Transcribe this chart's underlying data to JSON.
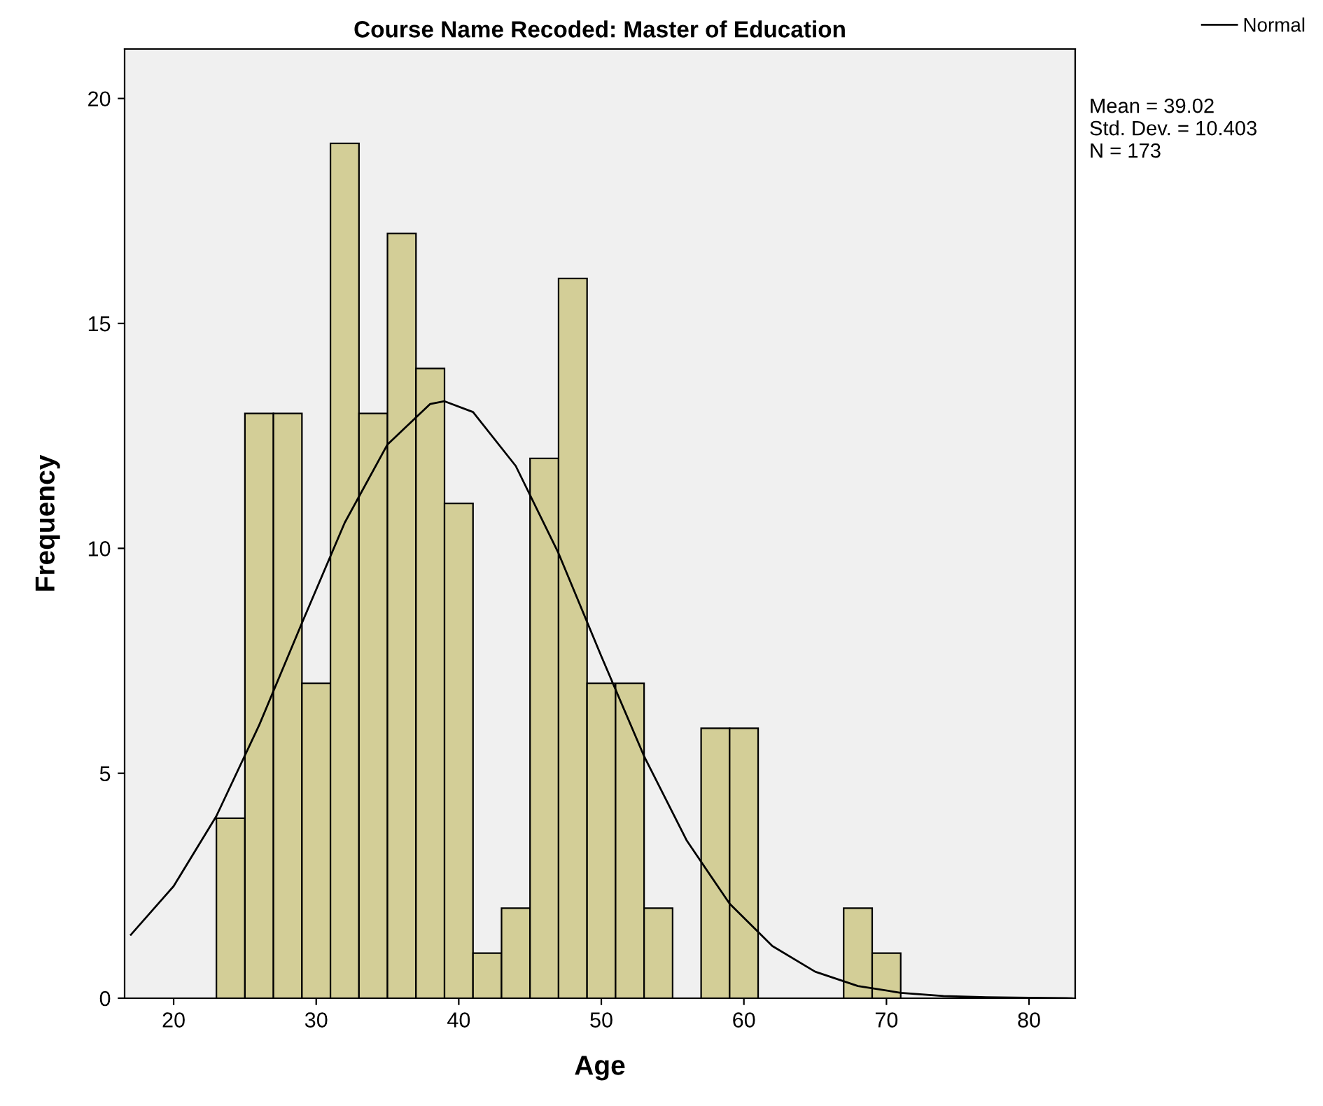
{
  "chart_data": {
    "type": "histogram",
    "title": "Course Name Recoded: Master of Education",
    "xlabel": "Age",
    "ylabel": "Frequency",
    "xlim": [
      16.56,
      83.24
    ],
    "xticks": [
      20,
      30,
      40,
      50,
      60,
      70,
      80
    ],
    "ylim": [
      0,
      21.1
    ],
    "yticks": [
      0,
      5,
      10,
      15,
      20
    ],
    "grid": false,
    "legend": "top right",
    "annotations": [
      "Mean = 39.02",
      "Std. Dev. = 10.403",
      "N = 173"
    ],
    "series": [
      {
        "type": "histogram",
        "color": "#d3ce97",
        "bins": [
          23,
          25,
          27,
          29,
          31,
          33,
          35,
          37,
          39,
          41,
          43,
          45,
          47,
          49,
          51,
          53,
          55,
          57,
          59,
          61,
          63,
          65,
          67,
          69,
          71
        ],
        "values": [
          4,
          13,
          13,
          7,
          19,
          13,
          17,
          14,
          11,
          1,
          2,
          12,
          16,
          7,
          7,
          2,
          0,
          6,
          6,
          0,
          0,
          0,
          2,
          1
        ]
      },
      {
        "type": "line",
        "name": "Normal",
        "color": "#000000",
        "x": [
          17,
          20,
          23,
          26,
          29,
          32,
          35,
          38,
          39,
          41,
          44,
          47,
          50,
          53,
          56,
          59,
          62,
          65,
          68,
          71,
          74,
          77,
          80,
          83
        ],
        "values": [
          1.41,
          2.49,
          4.05,
          6.07,
          8.34,
          10.57,
          12.31,
          13.21,
          13.27,
          13.03,
          11.83,
          9.89,
          7.6,
          5.38,
          3.5,
          2.1,
          1.16,
          0.59,
          0.27,
          0.12,
          0.05,
          0.02,
          0.01,
          0.0
        ]
      }
    ]
  }
}
